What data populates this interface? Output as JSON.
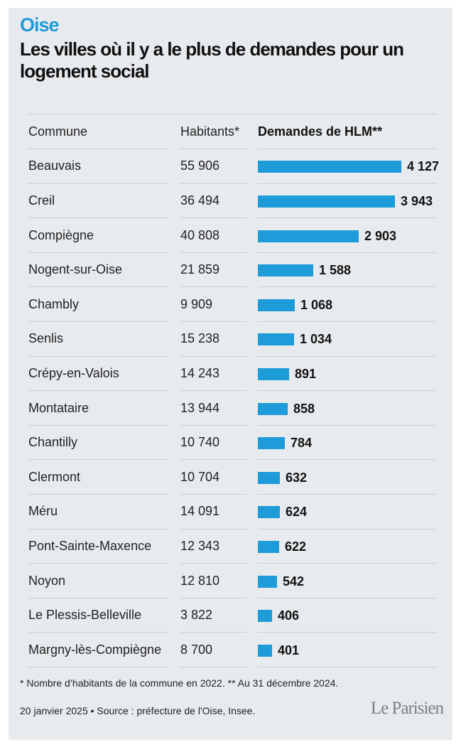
{
  "header": {
    "kicker": "Oise",
    "title": "Les villes où il y a le plus de demandes pour un logement social"
  },
  "table": {
    "col_commune": "Commune",
    "col_habitants": "Habitants*",
    "col_demandes": "Demandes de HLM**"
  },
  "chart_data": {
    "type": "bar",
    "orientation": "horizontal",
    "title": "Les villes où il y a le plus de demandes pour un logement social",
    "columns": [
      "Commune",
      "Habitants*",
      "Demandes de HLM**"
    ],
    "categories": [
      "Beauvais",
      "Creil",
      "Compiègne",
      "Nogent-sur-Oise",
      "Chambly",
      "Senlis",
      "Crépy-en-Valois",
      "Montataire",
      "Chantilly",
      "Clermont",
      "Méru",
      "Pont-Sainte-Maxence",
      "Noyon",
      "Le Plessis-Belleville",
      "Margny-lès-Compiègne"
    ],
    "habitants": [
      "55 906",
      "36 494",
      "40 808",
      "21 859",
      "9 909",
      "15 238",
      "14 243",
      "13 944",
      "10 740",
      "10 704",
      "14 091",
      "12 343",
      "12 810",
      "3 822",
      "8 700"
    ],
    "values": [
      4127,
      3943,
      2903,
      1588,
      1068,
      1034,
      891,
      858,
      784,
      632,
      624,
      622,
      542,
      406,
      401
    ],
    "value_labels": [
      "4 127",
      "3 943",
      "2 903",
      "1 588",
      "1 068",
      "1 034",
      "891",
      "858",
      "784",
      "632",
      "624",
      "622",
      "542",
      "406",
      "401"
    ],
    "bar_color": "#1e9bd9",
    "grid": false,
    "legend": "none"
  },
  "footer": {
    "footnote": "* Nombre d’habitants de la commune en 2022. **  Au 31 décembre 2024.",
    "source": "20 janvier 2025 • Source : préfecture de l'Oise, Insee.",
    "logo_text": "Le Parisien"
  },
  "colors": {
    "accent": "#1e9bd9",
    "background": "#e8ebee",
    "text": "#222222"
  }
}
